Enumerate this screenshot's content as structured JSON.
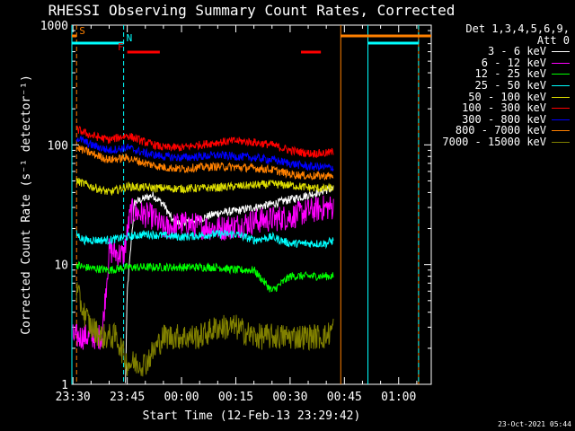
{
  "header": {
    "title": "RHESSI Observing Summary Count Rates, Corrected",
    "stamp": "23-Oct-2021 05:44"
  },
  "legend": {
    "header_line1": "Det 1,3,4,5,6,9,",
    "header_line2": "Att 0"
  },
  "chart_data": {
    "type": "line",
    "title": "RHESSI Observing Summary Count Rates, Corrected",
    "xlabel": "Start Time (12-Feb-13 23:29:42)",
    "ylabel": "Corrected Count Rate (s⁻¹ detector⁻¹)",
    "yscale": "log",
    "ylim": [
      1,
      1000
    ],
    "xlim": [
      "23:29:42",
      "01:09:00"
    ],
    "x_ticks": [
      "23:30",
      "23:45",
      "00:00",
      "00:15",
      "00:30",
      "00:45",
      "01:00"
    ],
    "y_ticks": [
      "1",
      "10",
      "100",
      "1000"
    ],
    "series": [
      {
        "name": "3 - 6 keV",
        "color": "#ffffff",
        "points": [
          [
            "23:44:30",
            1
          ],
          [
            "23:45",
            6
          ],
          [
            "23:47",
            33
          ],
          [
            "23:52",
            38
          ],
          [
            "23:55",
            32
          ],
          [
            "23:58",
            22
          ],
          [
            "00:05",
            24
          ],
          [
            "00:10",
            27
          ],
          [
            "00:15",
            28
          ],
          [
            "00:20",
            30
          ],
          [
            "00:25",
            32
          ],
          [
            "00:30",
            35
          ],
          [
            "00:35",
            38
          ],
          [
            "00:40",
            42
          ],
          [
            "00:42",
            43
          ]
        ]
      },
      {
        "name": "6 - 12 keV",
        "color": "#ff00ff",
        "points": [
          [
            "23:30",
            2.5
          ],
          [
            "23:38",
            2.5
          ],
          [
            "23:40",
            13
          ],
          [
            "23:44",
            12
          ],
          [
            "23:46",
            28
          ],
          [
            "23:52",
            25
          ],
          [
            "23:55",
            20
          ],
          [
            "00:00",
            22
          ],
          [
            "00:05",
            21
          ],
          [
            "00:10",
            20
          ],
          [
            "00:15",
            21
          ],
          [
            "00:20",
            23
          ],
          [
            "00:25",
            24
          ],
          [
            "00:30",
            25
          ],
          [
            "00:35",
            28
          ],
          [
            "00:40",
            30
          ],
          [
            "00:42",
            30
          ]
        ]
      },
      {
        "name": "12 - 25 keV",
        "color": "#00ff00",
        "points": [
          [
            "23:31",
            10
          ],
          [
            "23:33",
            9.5
          ],
          [
            "23:40",
            9
          ],
          [
            "23:45",
            9.5
          ],
          [
            "23:50",
            9.5
          ],
          [
            "00:00",
            9.5
          ],
          [
            "00:10",
            9.5
          ],
          [
            "00:15",
            9
          ],
          [
            "00:20",
            9
          ],
          [
            "00:25",
            6
          ],
          [
            "00:30",
            8
          ],
          [
            "00:35",
            8
          ],
          [
            "00:40",
            8
          ],
          [
            "00:42",
            8
          ]
        ]
      },
      {
        "name": "25 - 50 keV",
        "color": "#00ffff",
        "points": [
          [
            "23:31",
            18
          ],
          [
            "23:33",
            16
          ],
          [
            "23:40",
            16
          ],
          [
            "23:45",
            17
          ],
          [
            "23:50",
            18
          ],
          [
            "00:00",
            17
          ],
          [
            "00:10",
            18
          ],
          [
            "00:15",
            18
          ],
          [
            "00:20",
            16
          ],
          [
            "00:25",
            17
          ],
          [
            "00:30",
            15
          ],
          [
            "00:35",
            15
          ],
          [
            "00:40",
            15
          ],
          [
            "00:42",
            16
          ]
        ]
      },
      {
        "name": "50 - 100 keV",
        "color": "#dddd00",
        "points": [
          [
            "23:31",
            50
          ],
          [
            "23:35",
            45
          ],
          [
            "23:40",
            40
          ],
          [
            "23:45",
            45
          ],
          [
            "23:50",
            44
          ],
          [
            "00:00",
            43
          ],
          [
            "00:10",
            44
          ],
          [
            "00:15",
            45
          ],
          [
            "00:20",
            46
          ],
          [
            "00:25",
            47
          ],
          [
            "00:30",
            46
          ],
          [
            "00:35",
            44
          ],
          [
            "00:40",
            43
          ],
          [
            "00:42",
            44
          ]
        ]
      },
      {
        "name": "100 - 300 keV",
        "color": "#ff0000",
        "points": [
          [
            "23:31",
            135
          ],
          [
            "23:35",
            120
          ],
          [
            "23:40",
            110
          ],
          [
            "23:45",
            120
          ],
          [
            "23:50",
            105
          ],
          [
            "23:55",
            95
          ],
          [
            "00:00",
            95
          ],
          [
            "00:05",
            100
          ],
          [
            "00:10",
            105
          ],
          [
            "00:15",
            108
          ],
          [
            "00:20",
            105
          ],
          [
            "00:25",
            100
          ],
          [
            "00:30",
            90
          ],
          [
            "00:35",
            85
          ],
          [
            "00:40",
            85
          ],
          [
            "00:42",
            88
          ]
        ]
      },
      {
        "name": "300 - 800 keV",
        "color": "#0000ff",
        "points": [
          [
            "23:31",
            115
          ],
          [
            "23:35",
            100
          ],
          [
            "23:40",
            90
          ],
          [
            "23:45",
            95
          ],
          [
            "23:50",
            85
          ],
          [
            "23:55",
            80
          ],
          [
            "00:00",
            78
          ],
          [
            "00:05",
            80
          ],
          [
            "00:10",
            82
          ],
          [
            "00:15",
            80
          ],
          [
            "00:20",
            78
          ],
          [
            "00:25",
            75
          ],
          [
            "00:30",
            70
          ],
          [
            "00:35",
            66
          ],
          [
            "00:40",
            65
          ],
          [
            "00:42",
            65
          ]
        ]
      },
      {
        "name": "800 - 7000 keV",
        "color": "#ff8000",
        "points": [
          [
            "23:31",
            95
          ],
          [
            "23:35",
            85
          ],
          [
            "23:40",
            75
          ],
          [
            "23:45",
            78
          ],
          [
            "23:50",
            70
          ],
          [
            "23:55",
            65
          ],
          [
            "00:00",
            63
          ],
          [
            "00:05",
            65
          ],
          [
            "00:10",
            66
          ],
          [
            "00:15",
            65
          ],
          [
            "00:20",
            64
          ],
          [
            "00:25",
            62
          ],
          [
            "00:30",
            57
          ],
          [
            "00:35",
            55
          ],
          [
            "00:40",
            55
          ],
          [
            "00:42",
            55
          ]
        ]
      },
      {
        "name": "7000 - 15000 keV",
        "color": "#808000",
        "points": [
          [
            "23:31",
            6
          ],
          [
            "23:33",
            4
          ],
          [
            "23:35",
            3
          ],
          [
            "23:38",
            2.5
          ],
          [
            "23:42",
            2.5
          ],
          [
            "23:45",
            1.5
          ],
          [
            "23:50",
            1.5
          ],
          [
            "23:55",
            2.5
          ],
          [
            "00:00",
            2.5
          ],
          [
            "00:05",
            2.5
          ],
          [
            "00:10",
            3
          ],
          [
            "00:15",
            3
          ],
          [
            "00:20",
            2.5
          ],
          [
            "00:25",
            2.5
          ],
          [
            "00:30",
            2.5
          ],
          [
            "00:35",
            2.5
          ],
          [
            "00:40",
            2.5
          ],
          [
            "00:42",
            3
          ]
        ]
      }
    ],
    "flag_bars": [
      {
        "label": "S",
        "color": "#ff8000",
        "start": "23:29:42",
        "end": "23:31:00",
        "level": 1
      },
      {
        "label": "N",
        "color": "#00ffff",
        "start": "23:29:42",
        "end": "23:44:00",
        "level": 2
      },
      {
        "label": "F",
        "color": "#ff0000",
        "start": "23:45:00",
        "end": "23:54:00",
        "level": 3
      },
      {
        "label": "",
        "color": "#ff0000",
        "start": "00:33:00",
        "end": "00:38:30",
        "level": 3
      },
      {
        "label": "",
        "color": "#ff8000",
        "start": "00:44:00",
        "end": "01:09:00",
        "level": 1
      },
      {
        "label": "",
        "color": "#00ffff",
        "start": "00:51:30",
        "end": "01:05:30",
        "level": 2
      }
    ],
    "vertical_markers": [
      {
        "time": "23:29:42",
        "color": "#00ffff",
        "style": "solid"
      },
      {
        "time": "23:31:00",
        "color": "#ff8000",
        "style": "dashed"
      },
      {
        "time": "23:44:00",
        "color": "#00ffff",
        "style": "dashed"
      },
      {
        "time": "00:44:00",
        "color": "#ff8000",
        "style": "solid"
      },
      {
        "time": "00:51:30",
        "color": "#00ffff",
        "style": "solid"
      },
      {
        "time": "01:05:30",
        "color": "#ff8000",
        "style": "solid"
      },
      {
        "time": "01:05:30",
        "color": "#00ffff",
        "style": "dashed"
      }
    ]
  }
}
